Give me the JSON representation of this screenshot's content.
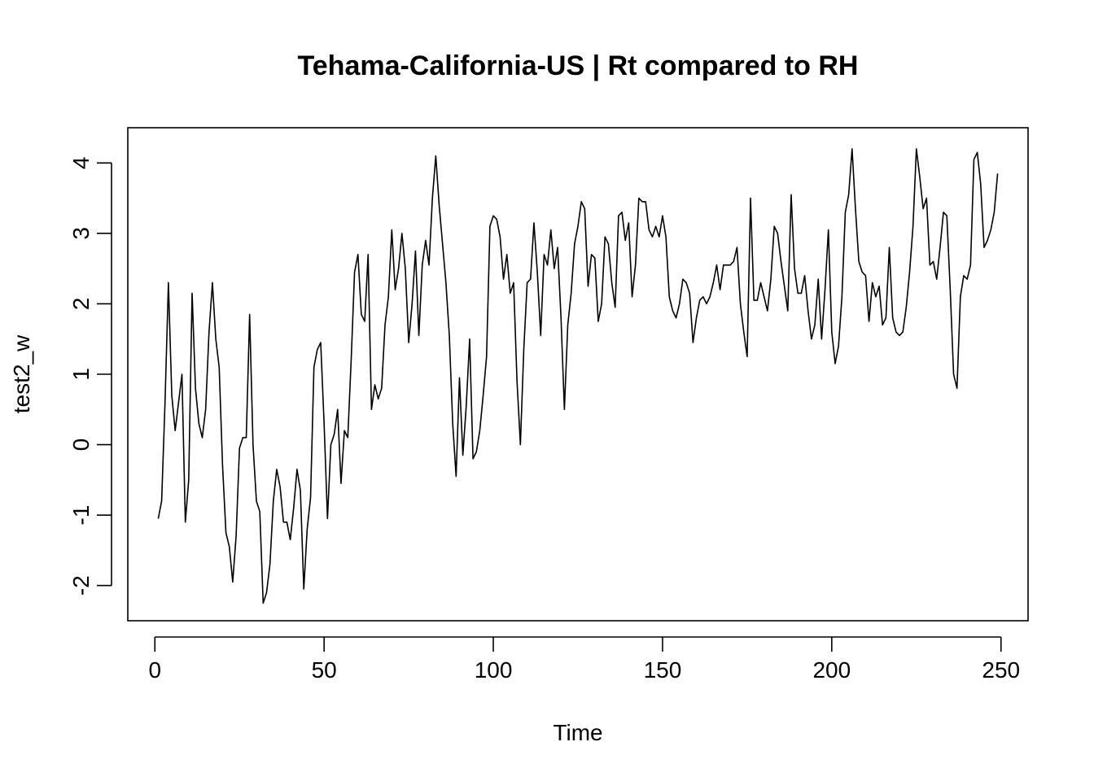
{
  "chart_data": {
    "type": "line",
    "title": "Tehama-California-US | Rt compared to RH",
    "xlabel": "Time",
    "ylabel": "test2_w",
    "xlim": [
      -8,
      258
    ],
    "ylim": [
      -2.5,
      4.5
    ],
    "xticks": [
      0,
      50,
      100,
      150,
      200,
      250
    ],
    "yticks": [
      -2,
      -1,
      0,
      1,
      2,
      3,
      4
    ],
    "xtick_labels": [
      "0",
      "50",
      "100",
      "150",
      "200",
      "250"
    ],
    "ytick_labels": [
      "-2",
      "-1",
      "0",
      "1",
      "2",
      "3",
      "4"
    ],
    "grid": false,
    "line_color": "#000000",
    "series": [
      {
        "x_start": 1,
        "values": [
          -1.05,
          -0.8,
          0.6,
          2.3,
          0.7,
          0.2,
          0.6,
          1.0,
          -1.1,
          -0.5,
          2.15,
          0.8,
          0.3,
          0.1,
          0.5,
          1.6,
          2.3,
          1.5,
          1.1,
          -0.3,
          -1.25,
          -1.45,
          -1.95,
          -1.3,
          -0.05,
          0.1,
          0.1,
          1.85,
          0.0,
          -0.8,
          -0.95,
          -2.25,
          -2.1,
          -1.7,
          -0.8,
          -0.35,
          -0.6,
          -1.1,
          -1.1,
          -1.35,
          -0.9,
          -0.35,
          -0.65,
          -2.05,
          -1.2,
          -0.75,
          1.1,
          1.35,
          1.45,
          0.3,
          -1.05,
          0.0,
          0.15,
          0.5,
          -0.55,
          0.2,
          0.1,
          1.2,
          2.45,
          2.7,
          1.85,
          1.75,
          2.7,
          0.5,
          0.85,
          0.65,
          0.8,
          1.7,
          2.1,
          3.05,
          2.2,
          2.5,
          3.0,
          2.5,
          1.45,
          2.0,
          2.75,
          1.55,
          2.55,
          2.9,
          2.55,
          3.5,
          4.1,
          3.4,
          2.85,
          2.3,
          1.55,
          0.3,
          -0.45,
          0.95,
          -0.15,
          0.55,
          1.5,
          -0.2,
          -0.1,
          0.2,
          0.7,
          1.25,
          3.1,
          3.25,
          3.2,
          2.95,
          2.35,
          2.7,
          2.15,
          2.3,
          0.9,
          0.0,
          1.35,
          2.3,
          2.35,
          3.15,
          2.45,
          1.55,
          2.7,
          2.55,
          3.05,
          2.5,
          2.8,
          1.8,
          0.5,
          1.7,
          2.15,
          2.85,
          3.1,
          3.45,
          3.35,
          2.25,
          2.7,
          2.65,
          1.75,
          2.0,
          2.95,
          2.85,
          2.3,
          1.95,
          3.25,
          3.3,
          2.9,
          3.15,
          2.1,
          2.55,
          3.5,
          3.45,
          3.45,
          3.05,
          2.95,
          3.1,
          2.95,
          3.25,
          2.95,
          2.1,
          1.9,
          1.8,
          2.0,
          2.35,
          2.3,
          2.15,
          1.45,
          1.8,
          2.05,
          2.1,
          2.0,
          2.1,
          2.3,
          2.55,
          2.2,
          2.55,
          2.55,
          2.55,
          2.6,
          2.8,
          2.0,
          1.6,
          1.25,
          3.5,
          2.05,
          2.05,
          2.3,
          2.1,
          1.9,
          2.35,
          3.1,
          3.0,
          2.6,
          2.25,
          1.9,
          3.55,
          2.5,
          2.15,
          2.15,
          2.4,
          1.9,
          1.5,
          1.7,
          2.35,
          1.5,
          2.2,
          3.05,
          1.6,
          1.15,
          1.4,
          2.1,
          3.3,
          3.55,
          4.2,
          3.35,
          2.6,
          2.45,
          2.4,
          1.75,
          2.3,
          2.1,
          2.25,
          1.7,
          1.8,
          2.8,
          1.8,
          1.6,
          1.55,
          1.6,
          1.95,
          2.45,
          3.1,
          4.2,
          3.8,
          3.35,
          3.5,
          2.55,
          2.6,
          2.35,
          2.8,
          3.3,
          3.25,
          2.2,
          1.0,
          0.8,
          2.1,
          2.4,
          2.35,
          2.55,
          4.05,
          4.15,
          3.7,
          2.8,
          2.9,
          3.05,
          3.3,
          3.85
        ]
      }
    ]
  }
}
